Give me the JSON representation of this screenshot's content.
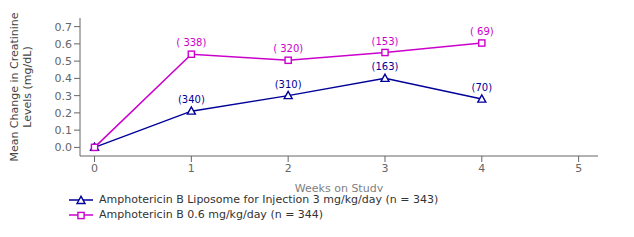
{
  "chart_data": {
    "type": "line",
    "x": [
      0,
      1,
      2,
      3,
      4
    ],
    "series": [
      {
        "name": "Amphotericin B Liposome for Injection 3 mg/kg/day (n = 343)",
        "color": "#000099",
        "marker": "triangle",
        "values": [
          0.0,
          0.21,
          0.3,
          0.4,
          0.28
        ],
        "annotations": [
          null,
          "(340)",
          "(310)",
          "(163)",
          "(70)"
        ]
      },
      {
        "name": "Amphotericin B 0.6 mg/kg/day (n = 344)",
        "color": "#cc00cc",
        "marker": "square",
        "values": [
          0.0,
          0.54,
          0.505,
          0.55,
          0.605
        ],
        "annotations": [
          null,
          "( 338)",
          "( 320)",
          "(153)",
          "( 69)"
        ]
      }
    ],
    "x_label": "Weeks on Study",
    "y_label": "Mean Change in Creatinine\nLevels (mg/dL)",
    "xlim": [
      -0.15,
      5.2
    ],
    "ylim": [
      -0.05,
      0.75
    ],
    "xticks": [
      0,
      1,
      2,
      3,
      4,
      5
    ],
    "yticks": [
      {
        "value": 0.0,
        "label": "0.0"
      },
      0.1,
      0.2,
      0.3,
      0.4,
      0.5,
      0.6,
      0.7
    ],
    "grid": false,
    "legend": "lower left"
  }
}
